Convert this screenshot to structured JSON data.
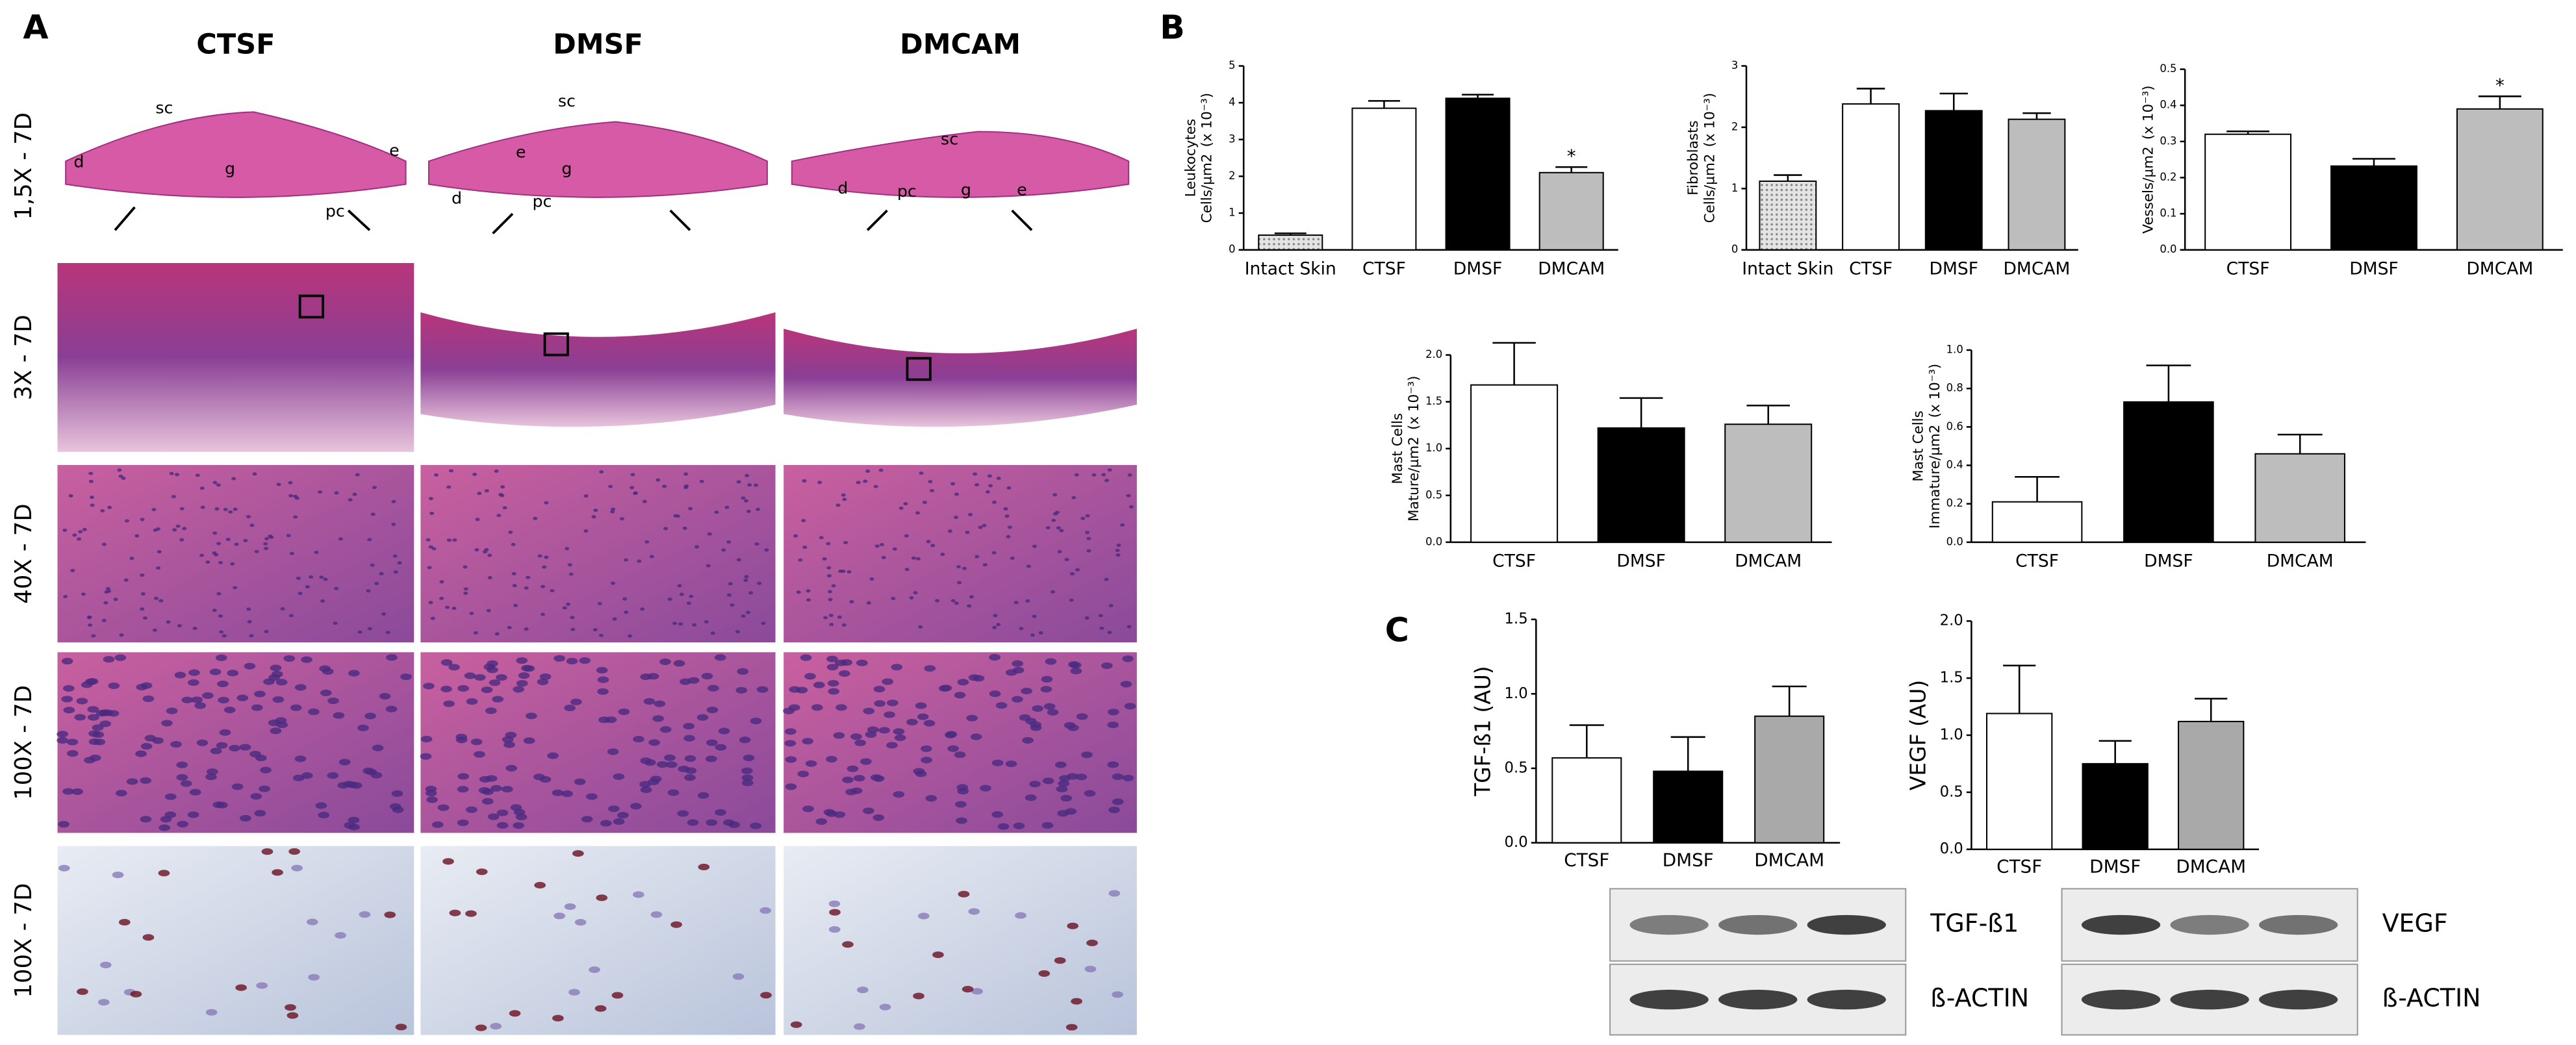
{
  "panels": {
    "a": {
      "label": "A",
      "columns": [
        "CTSF",
        "DMSF",
        "DMCAM"
      ],
      "rows": [
        "1,5X - 7D",
        "3X - 7D",
        "40X - 7D",
        "100X - 7D",
        "100X - 7D"
      ],
      "annotations": [
        [
          "sc",
          "d",
          "g",
          "pc",
          "e"
        ],
        [
          "sc",
          "e",
          "g",
          "d",
          "pc"
        ],
        [
          "sc",
          "d",
          "pc",
          "g",
          "e"
        ]
      ]
    },
    "b": {
      "label": "B"
    },
    "c": {
      "label": "C",
      "blots": [
        {
          "labels": [
            "TGF-ß1",
            "ß-ACTIN"
          ]
        },
        {
          "labels": [
            "VEGF",
            "ß-ACTIN"
          ]
        }
      ]
    }
  },
  "chart_data": [
    {
      "type": "bar",
      "y_label": [
        "Leukocytes",
        "Cells/µm2"
      ],
      "y_unit": "(x 10⁻³)",
      "categories": [
        "Intact Skin",
        "CTSF",
        "DMSF",
        "DMCAM"
      ],
      "values": [
        0.4,
        3.85,
        4.12,
        2.1
      ],
      "errors": [
        0.05,
        0.2,
        0.1,
        0.15
      ],
      "colors": [
        "#d2d2d2",
        "#ffffff",
        "#000000",
        "#bdbdbd"
      ],
      "significance": [
        null,
        null,
        null,
        "*"
      ],
      "ylim": [
        0,
        5
      ],
      "yticks": [
        0,
        1,
        2,
        3,
        4,
        5
      ]
    },
    {
      "type": "bar",
      "y_label": [
        "Fibroblasts",
        "Cells/µm2"
      ],
      "y_unit": "(x 10⁻³)",
      "categories": [
        "Intact Skin",
        "CTSF",
        "DMSF",
        "DMCAM"
      ],
      "values": [
        1.12,
        2.38,
        2.27,
        2.13
      ],
      "errors": [
        0.1,
        0.25,
        0.28,
        0.1
      ],
      "colors": [
        "#d2d2d2",
        "#ffffff",
        "#000000",
        "#bdbdbd"
      ],
      "ylim": [
        0,
        3
      ],
      "yticks": [
        0,
        1,
        2,
        3
      ]
    },
    {
      "type": "bar",
      "y_label": [
        "Vessels/µm2"
      ],
      "y_unit": "(x 10⁻³)",
      "categories": [
        "CTSF",
        "DMSF",
        "DMCAM"
      ],
      "values": [
        0.32,
        0.232,
        0.39
      ],
      "errors": [
        0.008,
        0.02,
        0.035
      ],
      "colors": [
        "#ffffff",
        "#000000",
        "#bdbdbd"
      ],
      "significance": [
        null,
        null,
        "*"
      ],
      "ylim": [
        0,
        0.5
      ],
      "yticks": [
        {
          "value": 0,
          "label": "0.0"
        },
        0.1,
        0.2,
        0.3,
        0.4,
        0.5
      ]
    },
    {
      "type": "bar",
      "y_label": [
        "Mast Cells",
        "Mature/µm2"
      ],
      "y_unit": "(x 10⁻³)",
      "categories": [
        "CTSF",
        "DMSF",
        "DMCAM"
      ],
      "values": [
        1.68,
        1.22,
        1.26
      ],
      "errors": [
        0.45,
        0.32,
        0.2
      ],
      "colors": [
        "#ffffff",
        "#000000",
        "#bdbdbd"
      ],
      "ylim": [
        0,
        2
      ],
      "yticks": [
        {
          "value": 0,
          "label": "0.0"
        },
        0.5,
        {
          "value": 1,
          "label": "1.0"
        },
        1.5,
        {
          "value": 2,
          "label": "2.0"
        }
      ]
    },
    {
      "type": "bar",
      "y_label": [
        "Mast Cells",
        "Immature/µm2"
      ],
      "y_unit": "(x 10⁻³)",
      "categories": [
        "CTSF",
        "DMSF",
        "DMCAM"
      ],
      "values": [
        0.21,
        0.73,
        0.46
      ],
      "errors": [
        0.13,
        0.19,
        0.1
      ],
      "colors": [
        "#ffffff",
        "#000000",
        "#bdbdbd"
      ],
      "ylim": [
        0,
        1
      ],
      "yticks": [
        {
          "value": 0,
          "label": "0.0"
        },
        0.2,
        0.4,
        0.6,
        0.8,
        {
          "value": 1,
          "label": "1.0"
        }
      ]
    },
    {
      "type": "bar",
      "y_label": [
        "TGF-ß1 (AU)"
      ],
      "categories": [
        "CTSF",
        "DMSF",
        "DMCAM"
      ],
      "values": [
        0.57,
        0.48,
        0.85
      ],
      "errors": [
        0.22,
        0.23,
        0.2
      ],
      "colors": [
        "#ffffff",
        "#000000",
        "#a9a9a9"
      ],
      "ylim": [
        0,
        1.5
      ],
      "yticks": [
        {
          "value": 0,
          "label": "0.0"
        },
        0.5,
        {
          "value": 1,
          "label": "1.0"
        },
        1.5
      ]
    },
    {
      "type": "bar",
      "y_label": [
        "VEGF (AU)"
      ],
      "categories": [
        "CTSF",
        "DMSF",
        "DMCAM"
      ],
      "values": [
        1.19,
        0.75,
        1.12
      ],
      "errors": [
        0.42,
        0.2,
        0.2
      ],
      "colors": [
        "#ffffff",
        "#000000",
        "#a9a9a9"
      ],
      "ylim": [
        0,
        2
      ],
      "yticks": [
        {
          "value": 0,
          "label": "0.0"
        },
        0.5,
        {
          "value": 1,
          "label": "1.0"
        },
        1.5,
        {
          "value": 2,
          "label": "2.0"
        }
      ]
    }
  ]
}
